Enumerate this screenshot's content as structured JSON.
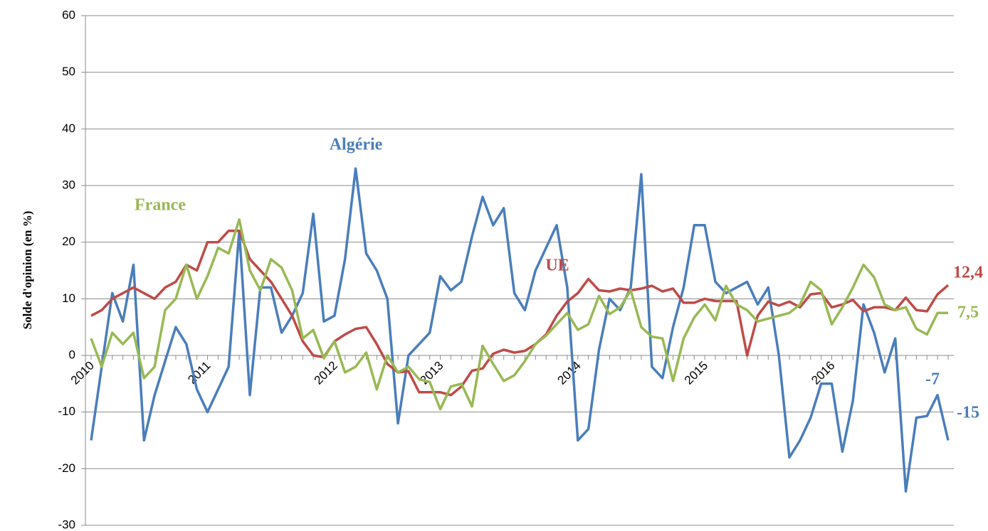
{
  "chart_data": {
    "type": "line",
    "y_label": "Solde d'opinion (en %)",
    "categories": [
      "2010",
      null,
      null,
      null,
      null,
      null,
      null,
      null,
      null,
      null,
      null,
      "2011",
      null,
      null,
      null,
      null,
      null,
      null,
      null,
      null,
      null,
      null,
      null,
      "2012",
      null,
      null,
      null,
      null,
      null,
      null,
      null,
      null,
      null,
      "2013",
      null,
      null,
      null,
      null,
      null,
      null,
      null,
      null,
      null,
      null,
      null,
      null,
      "2014",
      null,
      null,
      null,
      null,
      null,
      null,
      null,
      null,
      null,
      null,
      null,
      "2015",
      null,
      null,
      null,
      null,
      null,
      null,
      null,
      null,
      null,
      null,
      null,
      "2016",
      null,
      null,
      null,
      null,
      null,
      null,
      null,
      null,
      null,
      null,
      null
    ],
    "series": [
      {
        "name": "Algérie",
        "color": "#4a7ebb",
        "values": [
          -15,
          -2,
          11,
          6,
          16,
          -15,
          -7,
          -1,
          5,
          2,
          -6,
          -10,
          -6,
          -2,
          22,
          -7,
          12,
          12,
          4,
          7,
          11,
          25,
          6,
          7,
          17,
          33,
          18,
          15,
          10,
          -12,
          0,
          2,
          4,
          14,
          11.5,
          13,
          21,
          28,
          23,
          26,
          11,
          8,
          15,
          19,
          23,
          12,
          -15,
          -13,
          1,
          10,
          8,
          12,
          32,
          -2,
          -4,
          5,
          12,
          23,
          23,
          13,
          11,
          12,
          13,
          9,
          12,
          0,
          -18,
          -15,
          -11,
          -5,
          -5,
          -17,
          -8,
          9,
          4,
          -3,
          3,
          -24,
          -11,
          -10.7,
          -7,
          -15
        ]
      },
      {
        "name": "UE",
        "color": "#be4b48",
        "values": [
          7,
          8,
          10,
          11,
          12,
          11,
          10,
          12,
          13,
          16,
          15,
          20,
          20,
          22,
          22,
          17,
          15,
          13,
          10,
          7,
          2.5,
          0,
          -0.3,
          2.5,
          3.7,
          4.7,
          5,
          2,
          -1.5,
          -3,
          -2.8,
          -6.5,
          -6.5,
          -6.5,
          -7,
          -5.5,
          -2.7,
          -2.3,
          0.3,
          1,
          0.5,
          0.8,
          2,
          3.7,
          7,
          9.5,
          11,
          13.5,
          11.5,
          11.3,
          11.8,
          11.5,
          11.8,
          12.3,
          11.3,
          11.8,
          9.3,
          9.3,
          10,
          9.6,
          9.6,
          9.6,
          0,
          7,
          9.5,
          8.8,
          9.5,
          8.5,
          10.8,
          11,
          8.5,
          9,
          9.8,
          7.8,
          8.5,
          8.5,
          8,
          10.2,
          8,
          7.8,
          10.8,
          12.4
        ]
      },
      {
        "name": "France",
        "color": "#98b954",
        "values": [
          3,
          -2,
          4,
          2,
          4,
          -4,
          -2,
          8,
          10,
          16,
          10,
          14,
          19,
          18,
          24,
          15,
          11.5,
          17,
          15.5,
          11.5,
          3,
          4.5,
          -0.5,
          2.5,
          -3,
          -2,
          0.5,
          -6,
          0,
          -3,
          -2,
          -4.2,
          -4.7,
          -9.5,
          -5.5,
          -5,
          -9,
          1.7,
          -1.5,
          -4.5,
          -3.5,
          -1,
          2,
          3.5,
          5.5,
          7.5,
          4.5,
          5.5,
          10.5,
          7.3,
          8.5,
          11.5,
          5,
          3.3,
          3,
          -4.5,
          3,
          6.7,
          9,
          6.2,
          12.3,
          9,
          8,
          6,
          6.5,
          7,
          7.5,
          9,
          13,
          11.5,
          5.5,
          8.5,
          12,
          16,
          13.8,
          9,
          8,
          8.5,
          4.7,
          3.7,
          7.5,
          7.5
        ]
      }
    ],
    "annotations": [
      "12,4",
      "7,5",
      "-7",
      "-15"
    ],
    "ylim": [
      -30,
      60
    ],
    "yticks": [
      -30,
      -20,
      -10,
      0,
      10,
      20,
      30,
      40,
      50,
      60
    ],
    "grid": true
  }
}
